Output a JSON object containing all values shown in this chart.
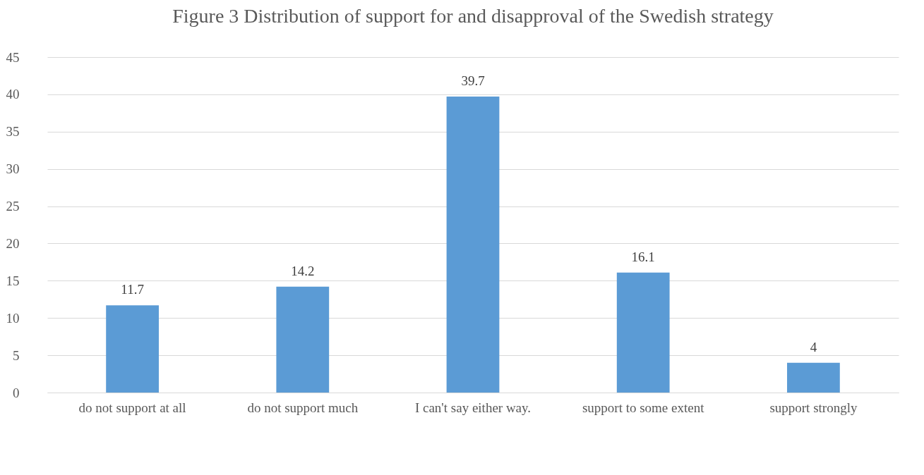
{
  "chart_data": {
    "type": "bar",
    "title": "Figure 3 Distribution of support for and disapproval of the Swedish strategy",
    "categories": [
      "do not support at all",
      "do not support much",
      "I can't say either way.",
      "support to some extent",
      "support strongly"
    ],
    "values": [
      11.7,
      14.2,
      39.7,
      16.1,
      4
    ],
    "color": "#5b9bd5",
    "ylim": [
      0,
      45
    ],
    "yticks": [
      0,
      5,
      10,
      15,
      20,
      25,
      30,
      35,
      40,
      45
    ],
    "grid": "y",
    "data_labels": true
  }
}
